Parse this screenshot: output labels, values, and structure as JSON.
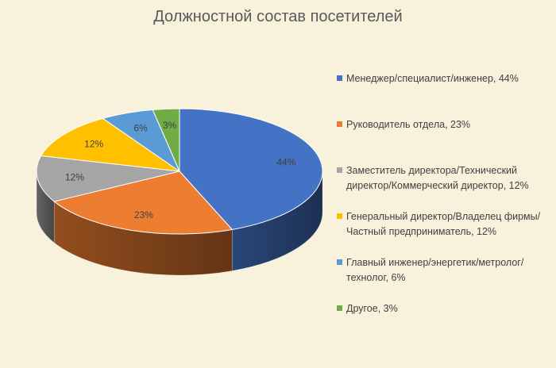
{
  "chart_data": {
    "type": "pie",
    "title": "Должностной состав посетителей",
    "categories": [
      "Менеджер/специалист/инженер",
      "Руководитель отдела",
      "Заместитель директора/Технический директор/Коммерческий директор",
      "Генеральный директор/Владелец фирмы/Частный предприниматель",
      "Главный инженер/энергетик/метролог/технолог",
      "Другое"
    ],
    "values": [
      44,
      23,
      12,
      12,
      6,
      3
    ],
    "data_labels": [
      "44%",
      "23%",
      "12%",
      "12%",
      "6%",
      "3%"
    ],
    "legend_labels": [
      "Менеджер/специалист/инженер, 44%",
      "Руководитель отдела, 23%",
      "Заместитель директора/Технический директор/Коммерческий директор, 12%",
      "Генеральный директор/Владелец фирмы/Частный предприниматель, 12%",
      "Главный инженер/энергетик/метролог/технолог, 6%",
      "Другое, 3%"
    ],
    "colors": [
      "#4472c4",
      "#ed7d31",
      "#a5a5a5",
      "#ffc000",
      "#5b9bd5",
      "#70ad47"
    ],
    "legend_position": "right",
    "style": "3d"
  }
}
